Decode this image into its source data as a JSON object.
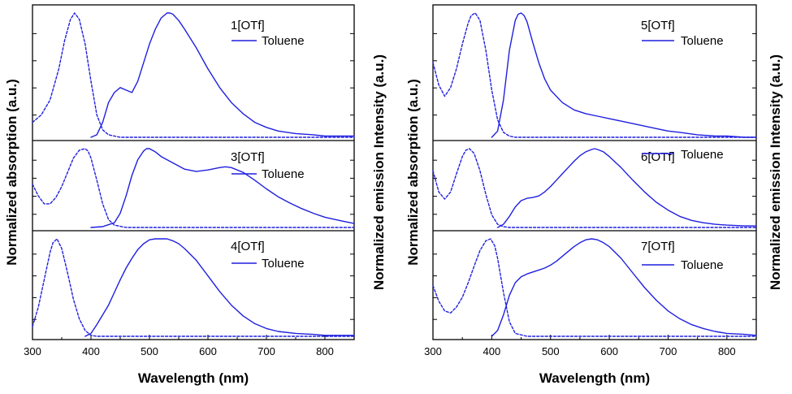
{
  "chart_data": [
    {
      "type": "line",
      "xlabel": "Wavelength (nm)",
      "ylabel_left": "Normalized absorption (a.u.)",
      "ylabel_right": "",
      "xlim": [
        300,
        850
      ],
      "xticks": [
        "300",
        "400",
        "500",
        "600",
        "700",
        "800"
      ],
      "series_color": "#1f1fe0",
      "legend_line_label": "Toluene",
      "panels": [
        {
          "label": "1[OTf]",
          "absorption": {
            "style": "dashed",
            "x": [
              300,
              315,
              330,
              345,
              355,
              365,
              372,
              380,
              390,
              400,
              410,
              420,
              430,
              440,
              450,
              460,
              480,
              520,
              600,
              700,
              800,
              850
            ],
            "y": [
              0.12,
              0.18,
              0.3,
              0.55,
              0.78,
              0.95,
              1.0,
              0.95,
              0.75,
              0.45,
              0.18,
              0.06,
              0.02,
              0.01,
              0.0,
              0.0,
              0.0,
              0.0,
              0.0,
              0.0,
              0.0,
              0.0
            ]
          },
          "emission": {
            "style": "solid",
            "x": [
              400,
              410,
              420,
              430,
              440,
              450,
              460,
              470,
              480,
              490,
              500,
              510,
              520,
              530,
              535,
              540,
              550,
              560,
              580,
              600,
              620,
              640,
              660,
              680,
              700,
              720,
              750,
              780,
              800,
              830,
              850
            ],
            "y": [
              0.0,
              0.02,
              0.12,
              0.28,
              0.36,
              0.4,
              0.38,
              0.36,
              0.45,
              0.6,
              0.75,
              0.87,
              0.96,
              1.0,
              1.0,
              0.99,
              0.94,
              0.87,
              0.72,
              0.55,
              0.4,
              0.28,
              0.19,
              0.12,
              0.08,
              0.05,
              0.03,
              0.02,
              0.01,
              0.01,
              0.01
            ]
          }
        },
        {
          "label": "3[OTf]",
          "absorption": {
            "style": "dashed",
            "x": [
              300,
              310,
              320,
              330,
              340,
              350,
              360,
              370,
              380,
              390,
              395,
              400,
              410,
              420,
              430,
              440,
              460,
              520,
              600,
              700,
              800,
              850
            ],
            "y": [
              0.55,
              0.4,
              0.3,
              0.3,
              0.38,
              0.52,
              0.7,
              0.88,
              0.98,
              1.0,
              0.97,
              0.88,
              0.6,
              0.3,
              0.1,
              0.03,
              0.0,
              0.0,
              0.0,
              0.0,
              0.0,
              0.0
            ]
          },
          "emission": {
            "style": "solid",
            "x": [
              400,
              420,
              440,
              450,
              460,
              470,
              480,
              490,
              495,
              500,
              510,
              520,
              540,
              560,
              580,
              600,
              620,
              630,
              640,
              660,
              680,
              700,
              720,
              740,
              760,
              780,
              800,
              830,
              850
            ],
            "y": [
              0.0,
              0.01,
              0.06,
              0.18,
              0.4,
              0.66,
              0.86,
              0.97,
              1.0,
              1.0,
              0.96,
              0.9,
              0.82,
              0.74,
              0.71,
              0.73,
              0.76,
              0.77,
              0.76,
              0.7,
              0.6,
              0.49,
              0.39,
              0.31,
              0.24,
              0.18,
              0.13,
              0.08,
              0.05
            ]
          }
        },
        {
          "label": "4[OTf]",
          "absorption": {
            "style": "dashed",
            "x": [
              300,
              310,
              320,
              330,
              335,
              342,
              350,
              360,
              370,
              380,
              390,
              400,
              410,
              430,
              500,
              600,
              700,
              800,
              850
            ],
            "y": [
              0.1,
              0.3,
              0.58,
              0.86,
              0.96,
              1.0,
              0.9,
              0.65,
              0.38,
              0.18,
              0.06,
              0.01,
              0.0,
              0.0,
              0.0,
              0.0,
              0.0,
              0.0,
              0.0
            ]
          },
          "emission": {
            "style": "solid",
            "x": [
              390,
              400,
              410,
              420,
              430,
              440,
              450,
              460,
              470,
              480,
              490,
              500,
              510,
              520,
              530,
              540,
              550,
              560,
              580,
              600,
              620,
              640,
              660,
              680,
              700,
              720,
              750,
              780,
              800,
              830,
              850
            ],
            "y": [
              0.0,
              0.03,
              0.12,
              0.22,
              0.32,
              0.45,
              0.58,
              0.7,
              0.8,
              0.89,
              0.95,
              0.99,
              1.0,
              1.0,
              1.0,
              0.98,
              0.95,
              0.9,
              0.78,
              0.62,
              0.46,
              0.32,
              0.21,
              0.13,
              0.08,
              0.05,
              0.03,
              0.02,
              0.01,
              0.01,
              0.01
            ]
          }
        },
        {
          "label": "5[OTf]",
          "absorption": {
            "style": "dashed",
            "x": [
              300,
              310,
              320,
              330,
              340,
              350,
              360,
              365,
              372,
              380,
              390,
              400,
              410,
              420,
              430,
              440,
              460,
              500,
              600,
              700,
              800,
              850
            ],
            "y": [
              0.6,
              0.42,
              0.33,
              0.4,
              0.55,
              0.75,
              0.92,
              0.98,
              1.0,
              0.94,
              0.7,
              0.38,
              0.14,
              0.04,
              0.01,
              0.0,
              0.0,
              0.0,
              0.0,
              0.0,
              0.0,
              0.0
            ]
          },
          "emission": {
            "style": "solid",
            "x": [
              400,
              410,
              420,
              430,
              440,
              445,
              450,
              455,
              460,
              470,
              480,
              490,
              500,
              520,
              540,
              560,
              580,
              600,
              620,
              650,
              680,
              700,
              720,
              750,
              780,
              800,
              830,
              850
            ],
            "y": [
              0.0,
              0.05,
              0.3,
              0.7,
              0.94,
              0.99,
              1.0,
              0.98,
              0.93,
              0.76,
              0.6,
              0.47,
              0.38,
              0.28,
              0.22,
              0.19,
              0.17,
              0.15,
              0.13,
              0.1,
              0.07,
              0.05,
              0.04,
              0.02,
              0.01,
              0.01,
              0.0,
              0.0
            ]
          }
        },
        {
          "label": "6[OTf]",
          "absorption": {
            "style": "dashed",
            "x": [
              300,
              310,
              320,
              330,
              340,
              350,
              356,
              362,
              370,
              380,
              390,
              400,
              410,
              420,
              430,
              450,
              500,
              600,
              700,
              800,
              850
            ],
            "y": [
              0.72,
              0.45,
              0.36,
              0.45,
              0.68,
              0.9,
              0.98,
              1.0,
              0.94,
              0.72,
              0.42,
              0.16,
              0.04,
              0.01,
              0.0,
              0.0,
              0.0,
              0.0,
              0.0,
              0.0,
              0.0
            ]
          },
          "emission": {
            "style": "solid",
            "x": [
              410,
              420,
              430,
              440,
              450,
              460,
              470,
              480,
              490,
              500,
              510,
              520,
              530,
              540,
              550,
              560,
              570,
              575,
              580,
              590,
              600,
              620,
              640,
              660,
              680,
              700,
              720,
              740,
              760,
              780,
              800,
              830,
              850
            ],
            "y": [
              0.0,
              0.04,
              0.14,
              0.26,
              0.34,
              0.37,
              0.38,
              0.4,
              0.45,
              0.52,
              0.6,
              0.68,
              0.76,
              0.84,
              0.91,
              0.96,
              0.99,
              1.0,
              0.99,
              0.96,
              0.9,
              0.76,
              0.6,
              0.45,
              0.32,
              0.22,
              0.14,
              0.09,
              0.06,
              0.04,
              0.03,
              0.02,
              0.02
            ]
          }
        },
        {
          "label": "7[OTf]",
          "absorption": {
            "style": "dashed",
            "x": [
              300,
              310,
              320,
              330,
              340,
              350,
              360,
              370,
              380,
              390,
              398,
              405,
              410,
              420,
              430,
              440,
              460,
              500,
              600,
              700,
              800,
              850
            ],
            "y": [
              0.52,
              0.36,
              0.26,
              0.24,
              0.3,
              0.4,
              0.55,
              0.72,
              0.88,
              0.98,
              1.0,
              0.93,
              0.8,
              0.45,
              0.15,
              0.03,
              0.0,
              0.0,
              0.0,
              0.0,
              0.0,
              0.0
            ]
          },
          "emission": {
            "style": "solid",
            "x": [
              400,
              410,
              420,
              430,
              440,
              450,
              460,
              470,
              480,
              490,
              500,
              510,
              520,
              530,
              540,
              550,
              560,
              570,
              580,
              590,
              600,
              620,
              640,
              660,
              680,
              700,
              720,
              740,
              760,
              780,
              800,
              830,
              850
            ],
            "y": [
              0.0,
              0.06,
              0.22,
              0.42,
              0.55,
              0.61,
              0.64,
              0.66,
              0.68,
              0.7,
              0.73,
              0.77,
              0.82,
              0.87,
              0.92,
              0.96,
              0.99,
              1.0,
              0.99,
              0.96,
              0.92,
              0.8,
              0.65,
              0.5,
              0.37,
              0.26,
              0.18,
              0.12,
              0.08,
              0.05,
              0.03,
              0.02,
              0.01
            ]
          }
        }
      ]
    }
  ],
  "left_axis_title": "Normalized absorption (a.u.)",
  "left_axis_title_right_side": "Normalized emission Intensity (a.u.)",
  "right_axis_title_left_side": "Normalized absorption (a.u.)",
  "right_axis_title": "Normalized emission Intensity (a.u.)",
  "x_axis_title": "Wavelength (nm)",
  "curve_color": "#1f1fe0",
  "legend_text": "Toluene",
  "panel_labels": [
    "1[OTf]",
    "3[OTf]",
    "4[OTf]",
    "5[OTf]",
    "6[OTf]",
    "7[OTf]"
  ]
}
